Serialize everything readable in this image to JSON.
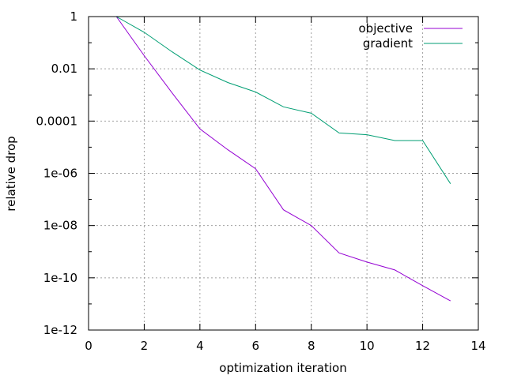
{
  "chart_data": {
    "type": "line",
    "xlabel": "optimization iteration",
    "ylabel": "relative drop",
    "xlim": [
      0,
      14
    ],
    "ylim": [
      1e-12,
      1
    ],
    "y_scale": "log",
    "grid": true,
    "legend_position": "top-right",
    "x_ticks": [
      0,
      2,
      4,
      6,
      8,
      10,
      12,
      14
    ],
    "x_tick_labels": [
      "0",
      "2",
      "4",
      "6",
      "8",
      "10",
      "12",
      "14"
    ],
    "y_ticks": [
      1e-12,
      1e-10,
      1e-08,
      1e-06,
      0.0001,
      0.01,
      1
    ],
    "y_tick_labels": [
      "1e-12",
      "1e-10",
      "1e-08",
      "1e-06",
      "0.0001",
      "0.01",
      "1"
    ],
    "series": [
      {
        "name": "objective",
        "color": "#9400d3",
        "x": [
          1,
          2,
          3,
          4,
          5,
          6,
          7,
          8,
          9,
          10,
          11,
          12,
          13
        ],
        "y": [
          1,
          0.032,
          0.0012,
          5e-05,
          8e-06,
          1.5e-06,
          4e-08,
          1e-08,
          9e-10,
          4e-10,
          2e-10,
          5e-11,
          1.3e-11
        ]
      },
      {
        "name": "gradient",
        "color": "#009e73",
        "x": [
          1,
          2,
          3,
          4,
          5,
          6,
          7,
          8,
          9,
          10,
          11,
          12,
          13
        ],
        "y": [
          1,
          0.25,
          0.045,
          0.009,
          0.003,
          0.0013,
          0.00035,
          0.0002,
          3.5e-05,
          3e-05,
          1.8e-05,
          1.8e-05,
          4e-07
        ]
      }
    ]
  }
}
